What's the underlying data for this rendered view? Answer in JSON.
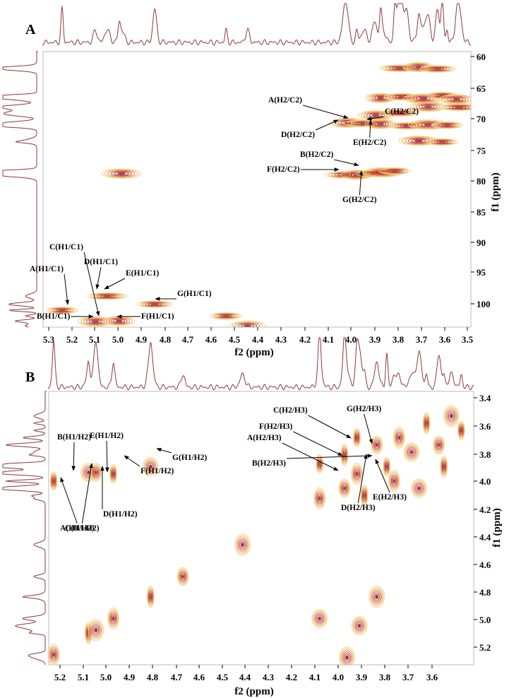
{
  "chart_data": [
    {
      "type": "scatter",
      "panel_label": "A",
      "xlabel": "f2 (ppm)",
      "ylabel": "f1 (ppm)",
      "xlim": [
        5.3,
        3.5
      ],
      "ylim": [
        58.5,
        103
      ],
      "x_ticks": [
        "5.3",
        "5.2",
        "5.1",
        "5.0",
        "4.9",
        "4.8",
        "4.7",
        "4.6",
        "4.5",
        "4.4",
        "4.3",
        "4.2",
        "4.1",
        "4.0",
        "3.9",
        "3.8",
        "3.7",
        "3.6",
        "3.5"
      ],
      "y_ticks": [
        "60",
        "65",
        "70",
        "75",
        "80",
        "85",
        "90",
        "95",
        "100"
      ],
      "peaks": [
        {
          "x": 5.22,
          "y": 100.3
        },
        {
          "x": 5.08,
          "y": 102.1
        },
        {
          "x": 5.03,
          "y": 98.0
        },
        {
          "x": 4.98,
          "y": 102.0
        },
        {
          "x": 4.83,
          "y": 99.3
        },
        {
          "x": 4.97,
          "y": 78.2
        },
        {
          "x": 4.53,
          "y": 101.2
        },
        {
          "x": 4.44,
          "y": 102.8
        },
        {
          "x": 4.03,
          "y": 78.4
        },
        {
          "x": 3.98,
          "y": 78.4
        },
        {
          "x": 3.91,
          "y": 78.2
        },
        {
          "x": 3.87,
          "y": 78.0
        },
        {
          "x": 3.82,
          "y": 77.8
        },
        {
          "x": 4.02,
          "y": 70.0
        },
        {
          "x": 3.95,
          "y": 70.1
        },
        {
          "x": 3.88,
          "y": 70.2
        },
        {
          "x": 3.77,
          "y": 70.5
        },
        {
          "x": 3.68,
          "y": 70.3
        },
        {
          "x": 3.6,
          "y": 70.4
        },
        {
          "x": 3.9,
          "y": 68.8
        },
        {
          "x": 3.8,
          "y": 68.4
        },
        {
          "x": 3.88,
          "y": 66.0
        },
        {
          "x": 3.79,
          "y": 65.8
        },
        {
          "x": 3.7,
          "y": 66.1
        },
        {
          "x": 3.62,
          "y": 65.6
        },
        {
          "x": 3.56,
          "y": 66.2
        },
        {
          "x": 3.8,
          "y": 61.2
        },
        {
          "x": 3.72,
          "y": 61.0
        },
        {
          "x": 3.64,
          "y": 61.3
        },
        {
          "x": 3.72,
          "y": 72.9
        },
        {
          "x": 3.62,
          "y": 73.1
        },
        {
          "x": 3.68,
          "y": 67.4
        },
        {
          "x": 3.55,
          "y": 67.5
        }
      ],
      "annotations": [
        {
          "text": "A(H1/C1)",
          "x": 5.22,
          "y": 100.3
        },
        {
          "text": "B(H1/C1)",
          "x": 5.08,
          "y": 102.1
        },
        {
          "text": "C(H1/C1)",
          "x": 5.08,
          "y": 102.1
        },
        {
          "text": "D(H1/C1)",
          "x": 5.04,
          "y": 98.0
        },
        {
          "text": "E(H1/C1)",
          "x": 5.02,
          "y": 98.0
        },
        {
          "text": "F(H1/C1)",
          "x": 4.98,
          "y": 102.0
        },
        {
          "text": "G(H1/C1)",
          "x": 4.83,
          "y": 99.3
        },
        {
          "text": "A(H2/C2)",
          "x": 4.03,
          "y": 78.4
        },
        {
          "text": "B(H2/C2)",
          "x": 3.96,
          "y": 78.4
        },
        {
          "text": "C(H2/C2)",
          "x": 4.0,
          "y": 69.9
        },
        {
          "text": "D(H2/C2)",
          "x": 3.95,
          "y": 77.6
        },
        {
          "text": "E(H2/C2)",
          "x": 3.93,
          "y": 70.1
        },
        {
          "text": "F(H2/C2)",
          "x": 4.02,
          "y": 70.0
        },
        {
          "text": "G(H2/C2)",
          "x": 3.94,
          "y": 70.1
        }
      ]
    },
    {
      "type": "scatter",
      "panel_label": "B",
      "xlabel": "f2 (ppm)",
      "ylabel": "f1 (ppm)",
      "xlim": [
        5.24,
        3.53
      ],
      "ylim": [
        3.38,
        5.27
      ],
      "x_ticks": [
        "5.2",
        "5.1",
        "5.0",
        "4.9",
        "4.8",
        "4.7",
        "4.6",
        "4.5",
        "4.4",
        "4.3",
        "4.2",
        "4.1",
        "4.0",
        "3.9",
        "3.8",
        "3.7",
        "3.6"
      ],
      "y_ticks": [
        "3.4",
        "3.6",
        "3.8",
        "4.0",
        "4.2",
        "4.4",
        "4.6",
        "4.8",
        "5.0",
        "5.2"
      ],
      "peaks": [
        {
          "x": 5.22,
          "y": 4.0
        },
        {
          "x": 5.22,
          "y": 5.2
        },
        {
          "x": 5.08,
          "y": 3.94
        },
        {
          "x": 5.08,
          "y": 5.05
        },
        {
          "x": 5.05,
          "y": 3.94
        },
        {
          "x": 5.05,
          "y": 5.03
        },
        {
          "x": 4.98,
          "y": 3.95
        },
        {
          "x": 4.98,
          "y": 4.95
        },
        {
          "x": 4.83,
          "y": 3.9
        },
        {
          "x": 4.83,
          "y": 4.8
        },
        {
          "x": 4.7,
          "y": 4.66
        },
        {
          "x": 4.46,
          "y": 4.44
        },
        {
          "x": 4.15,
          "y": 3.88
        },
        {
          "x": 4.15,
          "y": 4.12
        },
        {
          "x": 4.15,
          "y": 4.95
        },
        {
          "x": 4.05,
          "y": 3.82
        },
        {
          "x": 4.05,
          "y": 4.05
        },
        {
          "x": 4.04,
          "y": 5.22
        },
        {
          "x": 4.0,
          "y": 3.7
        },
        {
          "x": 4.0,
          "y": 3.95
        },
        {
          "x": 3.99,
          "y": 5.0
        },
        {
          "x": 3.97,
          "y": 4.1
        },
        {
          "x": 3.92,
          "y": 3.75
        },
        {
          "x": 3.92,
          "y": 4.8
        },
        {
          "x": 3.88,
          "y": 3.9
        },
        {
          "x": 3.83,
          "y": 3.7
        },
        {
          "x": 3.78,
          "y": 3.8
        },
        {
          "x": 3.72,
          "y": 3.6
        },
        {
          "x": 3.67,
          "y": 3.75
        },
        {
          "x": 3.62,
          "y": 3.55
        },
        {
          "x": 3.58,
          "y": 3.65
        },
        {
          "x": 3.85,
          "y": 4.0
        },
        {
          "x": 3.75,
          "y": 4.05
        },
        {
          "x": 3.65,
          "y": 3.9
        }
      ],
      "annotations": [
        {
          "text": "A(H1/H2)",
          "x": 5.22,
          "y": 4.0
        },
        {
          "text": "B(H1/H2)",
          "x": 5.08,
          "y": 3.94
        },
        {
          "text": "C(H1/H2)",
          "x": 5.07,
          "y": 3.93
        },
        {
          "text": "D(H1/H2)",
          "x": 5.05,
          "y": 3.93
        },
        {
          "text": "E(H1/H2)",
          "x": 5.03,
          "y": 3.85
        },
        {
          "text": "F(H1/H2)",
          "x": 4.97,
          "y": 3.94
        },
        {
          "text": "G(H1/H2)",
          "x": 4.83,
          "y": 3.9
        },
        {
          "text": "A(H2/H3)",
          "x": 4.05,
          "y": 3.92
        },
        {
          "text": "B(H2/H3)",
          "x": 3.97,
          "y": 3.94
        },
        {
          "text": "C(H2/H3)",
          "x": 3.96,
          "y": 3.73
        },
        {
          "text": "D(H2/H3)",
          "x": 3.96,
          "y": 3.94
        },
        {
          "text": "E(H2/H3)",
          "x": 3.93,
          "y": 3.92
        },
        {
          "text": "F(H2/H3)",
          "x": 4.02,
          "y": 3.82
        },
        {
          "text": "G(H2/H3)",
          "x": 3.93,
          "y": 3.75
        }
      ]
    }
  ]
}
